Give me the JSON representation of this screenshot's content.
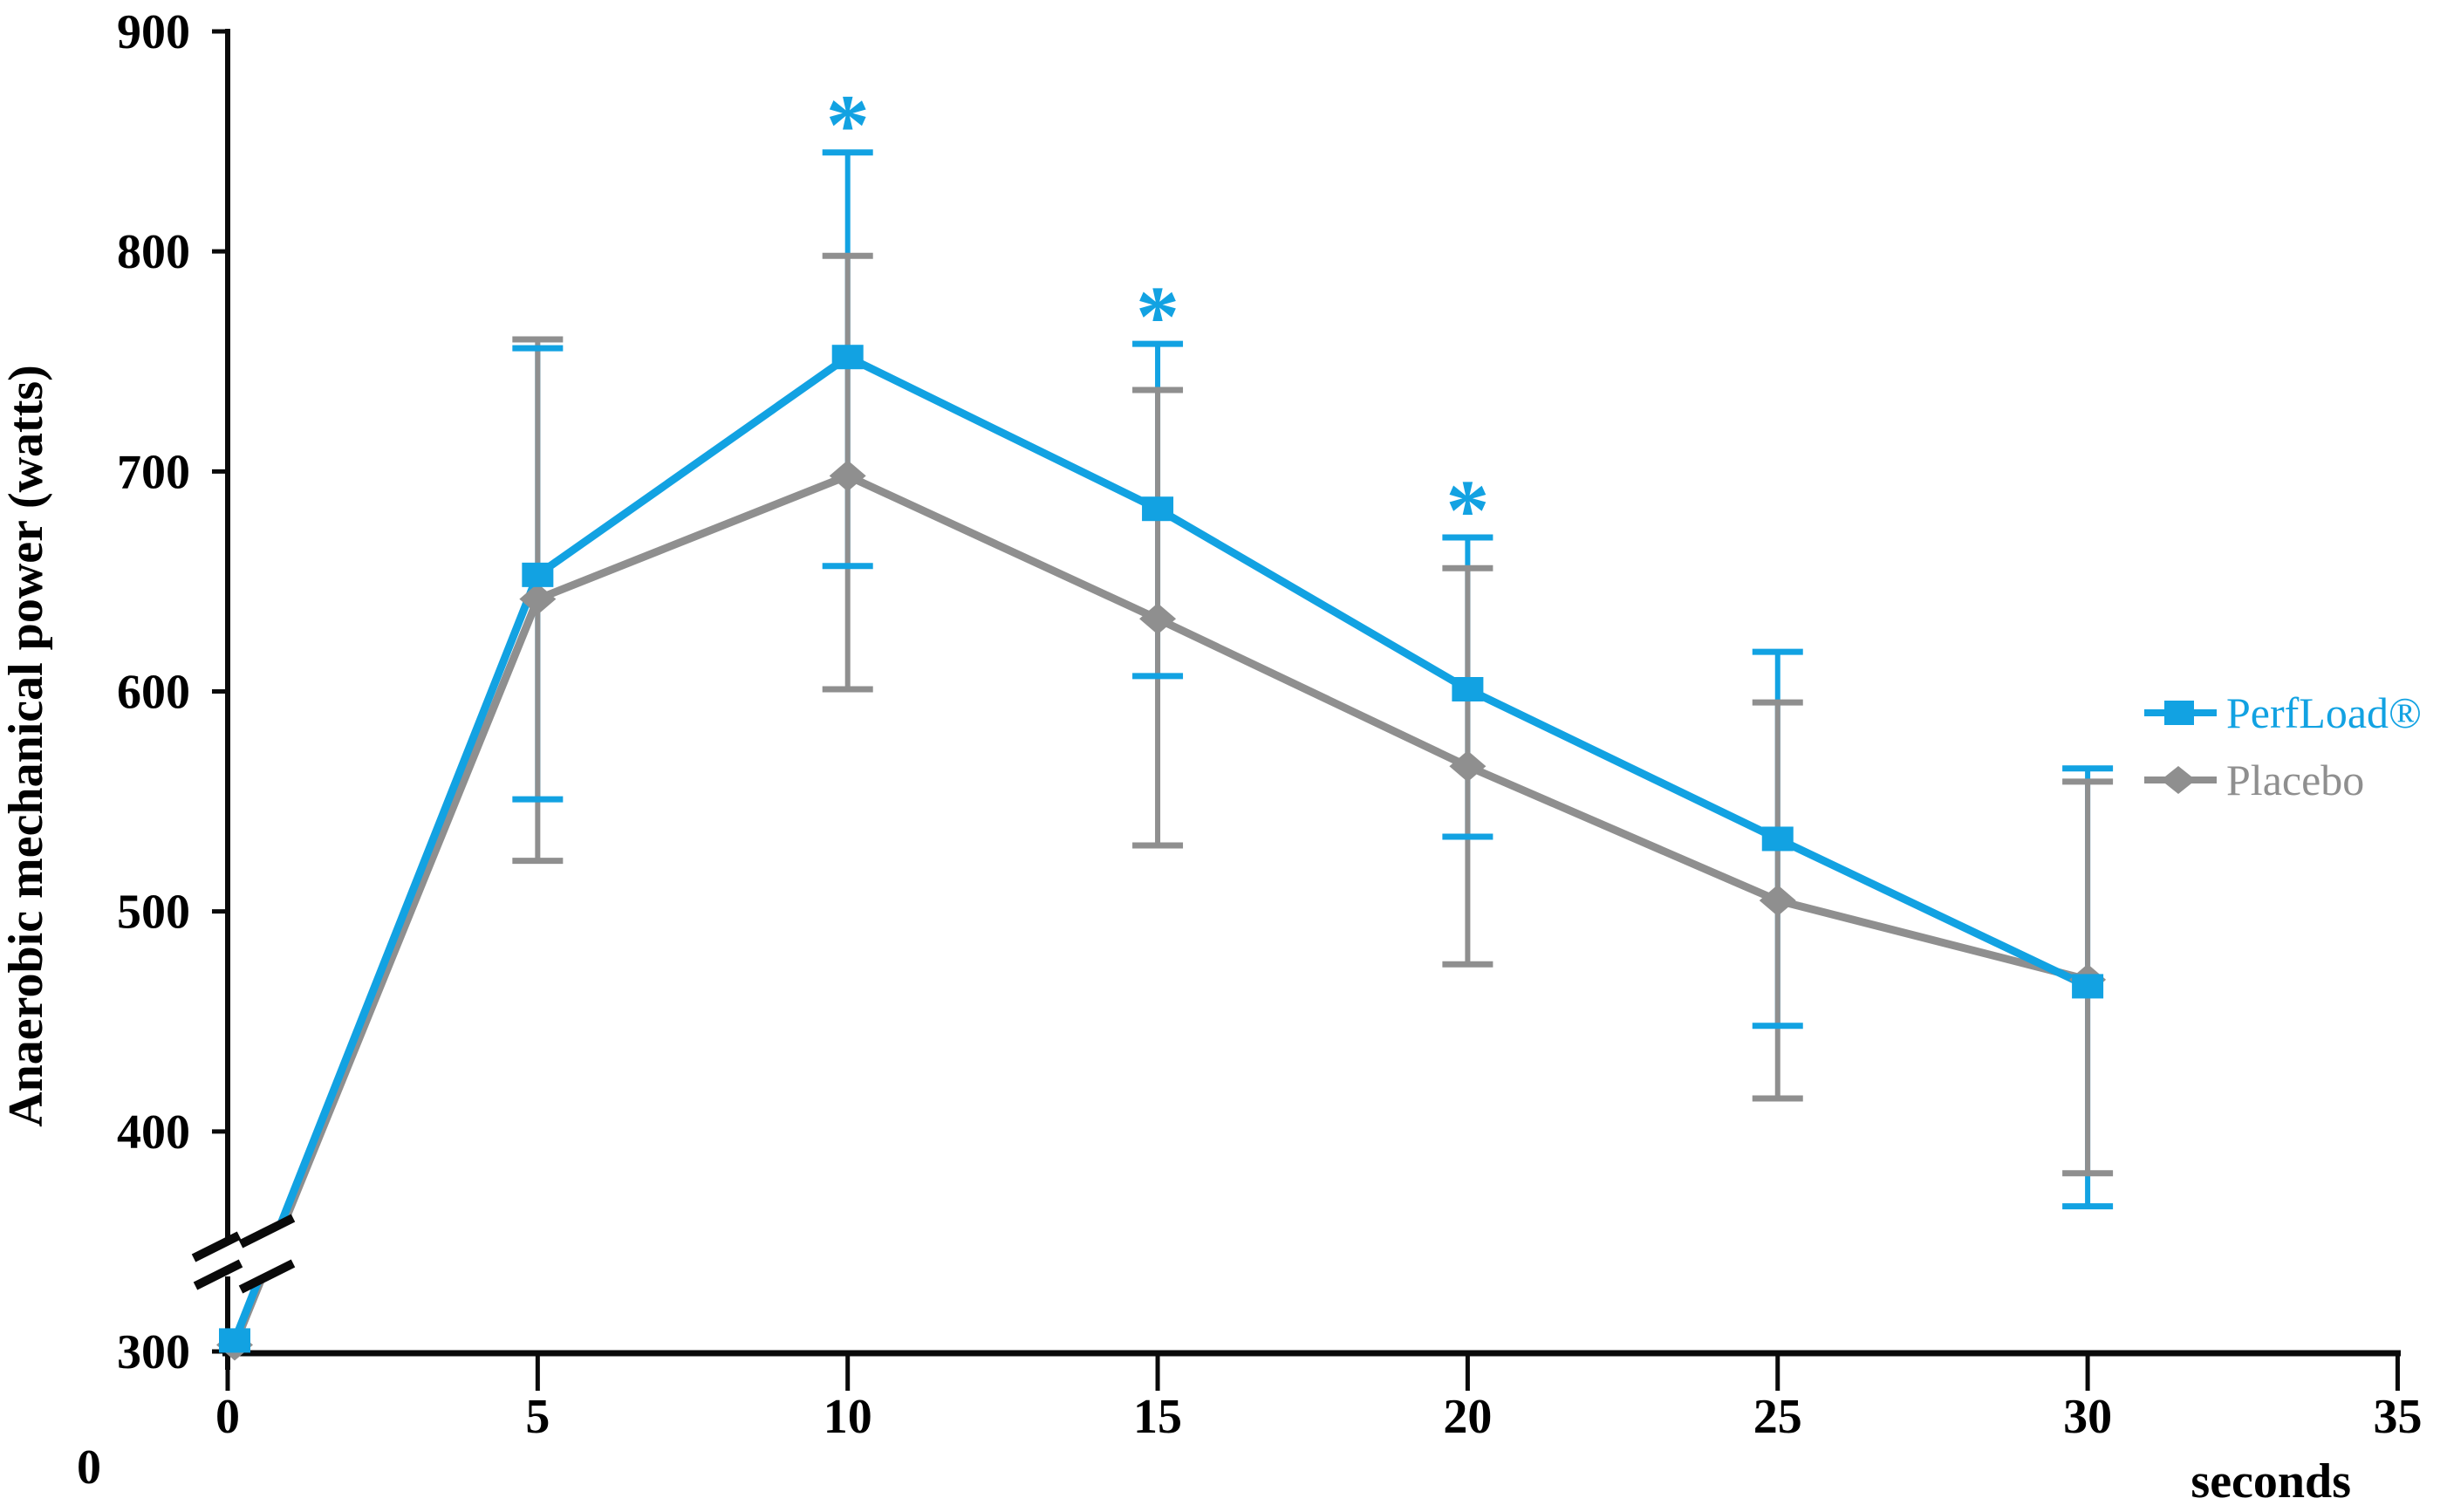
{
  "figure": {
    "background": "#ffffff",
    "axis_color": "#0a0a0a",
    "origin_label": "0"
  },
  "chart_data": {
    "type": "line",
    "title": "",
    "xlabel": "seconds",
    "ylabel": "Anaerobic mechanical power (watts)",
    "x": [
      0,
      5,
      10,
      15,
      20,
      25,
      30
    ],
    "x_ticks": [
      0,
      5,
      10,
      15,
      20,
      25,
      30,
      35
    ],
    "xlim": [
      0,
      35
    ],
    "y_ticks": [
      300,
      400,
      500,
      600,
      700,
      800,
      900
    ],
    "ylim": [
      300,
      900
    ],
    "y_axis_break": true,
    "y_axis_zero_label": "0",
    "grid": false,
    "legend_position": "right",
    "series": [
      {
        "name": "PerfLoad®",
        "color": "#12A2E2",
        "marker": "square",
        "values": [
          305,
          653,
          752,
          683,
          601,
          533,
          466
        ],
        "err_hi": [
          null,
          756,
          845,
          758,
          670,
          618,
          565
        ],
        "err_lo": [
          null,
          551,
          657,
          607,
          534,
          448,
          366
        ]
      },
      {
        "name": "Placebo",
        "color": "#8F8F8F",
        "marker": "diamond",
        "values": [
          303,
          642,
          698,
          633,
          566,
          505,
          469
        ],
        "err_hi": [
          null,
          760,
          798,
          737,
          656,
          595,
          559
        ],
        "err_lo": [
          null,
          523,
          601,
          530,
          476,
          415,
          381
        ]
      }
    ],
    "significance": {
      "symbol": "*",
      "color": "#12A2E2",
      "x": [
        10,
        15,
        20
      ],
      "applies_to_series": "PerfLoad®"
    }
  }
}
